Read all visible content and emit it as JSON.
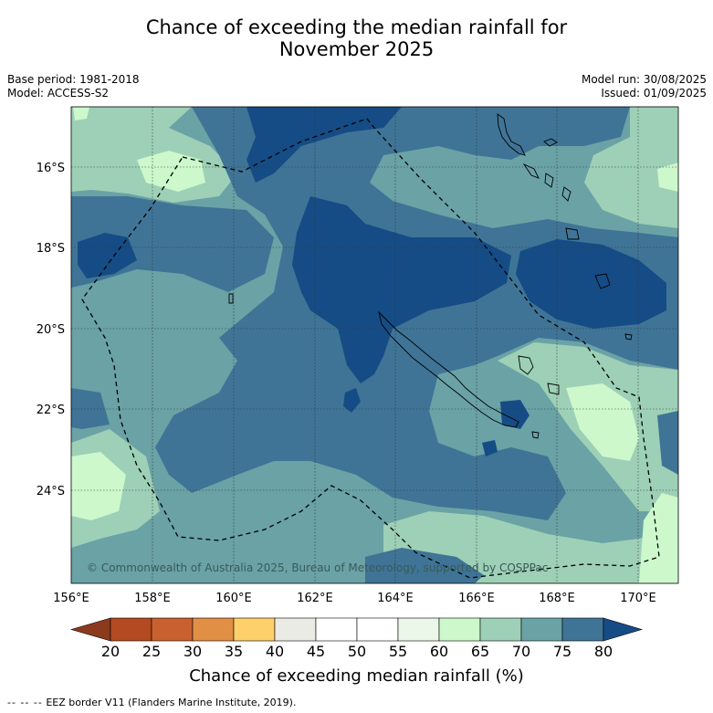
{
  "title_line1": "Chance of exceeding the median rainfall for",
  "title_line2": "November 2025",
  "base_period": "Base period: 1981-2018",
  "model": "Model: ACCESS-S2",
  "model_run": "Model run: 30/08/2025",
  "issued": "Issued: 01/09/2025",
  "copyright": "© Commonwealth of Australia 2025, Bureau of Meteorology, supported by COSPPac",
  "lon_labels": [
    "156°E",
    "158°E",
    "160°E",
    "162°E",
    "164°E",
    "166°E",
    "168°E",
    "170°E"
  ],
  "lat_labels": [
    "16°S",
    "18°S",
    "20°S",
    "22°S",
    "24°S"
  ],
  "colorbar": {
    "title": "Chance of exceeding median rainfall (%)",
    "ticks": [
      "20",
      "25",
      "30",
      "35",
      "40",
      "45",
      "50",
      "55",
      "60",
      "65",
      "70",
      "75",
      "80"
    ],
    "colors": [
      "#8b3a1e",
      "#b34a22",
      "#c8612f",
      "#e08f45",
      "#fdd06b",
      "#ebebe6",
      "#ffffff",
      "#ffffff",
      "#ebf7e8",
      "#ccf8cc",
      "#9dd0b6",
      "#6aa2a6",
      "#3f7496",
      "#164c85"
    ]
  },
  "footer": {
    "dashes": "-- -- --",
    "text": "EEZ border V11 (Flanders Marine Institute, 2019)."
  }
}
